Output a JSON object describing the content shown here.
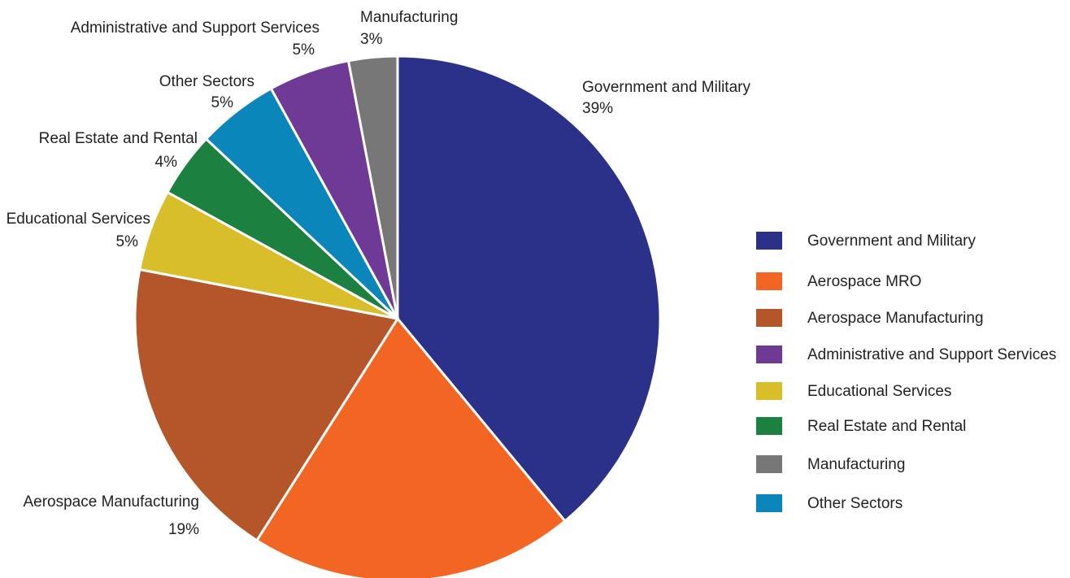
{
  "chart_data": {
    "type": "pie",
    "categories": [
      "Government and Military",
      "Aerospace MRO",
      "Aerospace Manufacturing",
      "Educational Services",
      "Real Estate and Rental",
      "Other Sectors",
      "Administrative and Support Services",
      "Manufacturing"
    ],
    "values": [
      39,
      20,
      19,
      5,
      4,
      5,
      5,
      3
    ],
    "value_labels": [
      "39%",
      null,
      "19%",
      "5%",
      "4%",
      "5%",
      "5%",
      "3%"
    ],
    "colors": [
      "#2b3188",
      "#f26522",
      "#b5562a",
      "#d8bf2a",
      "#1b8040",
      "#0b86bb",
      "#6f3a96",
      "#777777"
    ],
    "legend": "right"
  }
}
